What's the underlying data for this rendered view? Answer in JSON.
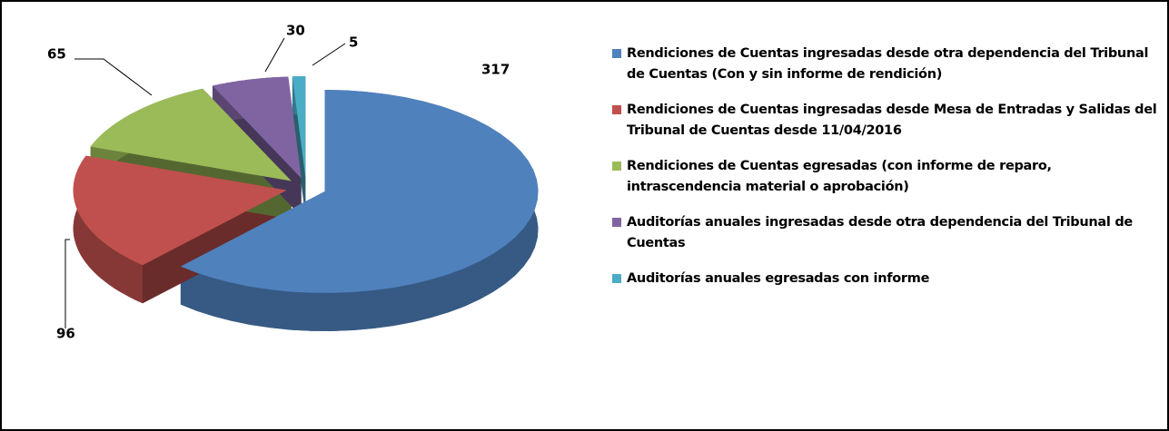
{
  "chart_data": {
    "type": "pie",
    "categories": [
      "Rendiciones de Cuentas ingresadas desde otra dependencia del Tribunal de Cuentas (Con y sin informe de rendición)",
      "Rendiciones de Cuentas ingresadas desde Mesa de Entradas y Salidas del Tribunal de Cuentas desde 11/04/2016",
      "Rendiciones de Cuentas egresadas (con informe de reparo, intrascendencia material o aprobación)",
      "Auditorías anuales ingresadas desde otra dependencia del Tribunal de Cuentas",
      "Auditorías anuales egresadas con informe"
    ],
    "values": [
      317,
      96,
      65,
      30,
      5
    ],
    "colors": [
      "#4f81bd",
      "#c0504d",
      "#9bbb59",
      "#8064a2",
      "#4bacc6"
    ]
  }
}
